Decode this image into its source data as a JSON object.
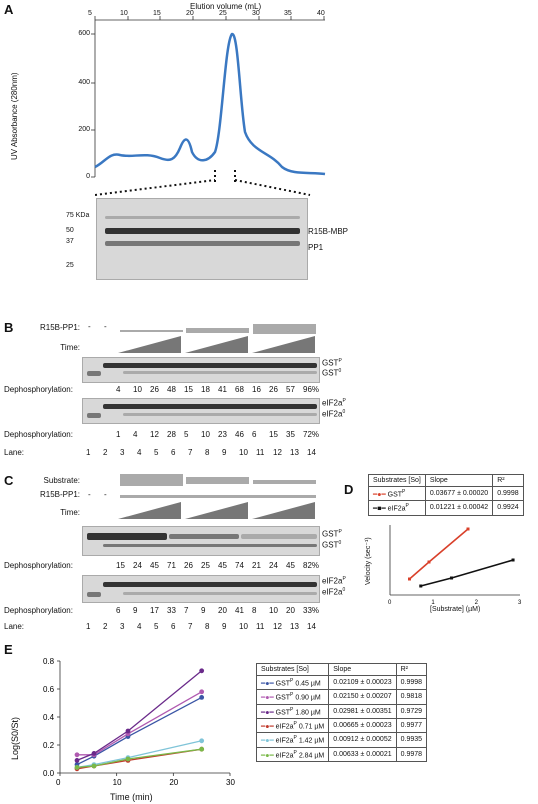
{
  "panels": {
    "a": "A",
    "b": "B",
    "c": "C",
    "d": "D",
    "e": "E"
  },
  "panelA": {
    "top_axis_label": "Elution volume (mL)",
    "top_ticks": [
      "5",
      "10",
      "15",
      "20",
      "25",
      "30",
      "35",
      "40"
    ],
    "ylabel": "UV Absorbance (280nm)",
    "yticks": [
      "600",
      "400",
      "200",
      "0"
    ],
    "gel_markers": [
      "75 KDa",
      "50",
      "37",
      "25"
    ],
    "gel_labels": [
      "R15B-MBP",
      "PP1"
    ]
  },
  "panelB": {
    "r15b_label": "R15B-PP1:",
    "dash1": "-",
    "dash2": "-",
    "time_label": "Time:",
    "gst_p": "GST",
    "gst_0": "GST",
    "eif_p": "eIF2a",
    "eif_0": "eIF2a",
    "deph_label": "Dephosphorylation:",
    "deph_gst": [
      "4",
      "10",
      "26",
      "48",
      "15",
      "18",
      "41",
      "68",
      "16",
      "26",
      "57",
      "96%"
    ],
    "deph_eif": [
      "1",
      "4",
      "12",
      "28",
      "5",
      "10",
      "23",
      "46",
      "6",
      "15",
      "35",
      "72%"
    ],
    "lane_label": "Lane:",
    "lanes": [
      "1",
      "2",
      "3",
      "4",
      "5",
      "6",
      "7",
      "8",
      "9",
      "10",
      "11",
      "12",
      "13",
      "14"
    ]
  },
  "panelC": {
    "substrate_label": "Substrate:",
    "r15b_label": "R15B-PP1:",
    "dash1": "-",
    "dash2": "-",
    "time_label": "Time:",
    "gst_p": "GST",
    "gst_0": "GST",
    "eif_p": "eIF2a",
    "eif_0": "eIF2a",
    "deph_label": "Dephosphorylation:",
    "deph_gst": [
      "15",
      "24",
      "45",
      "71",
      "26",
      "25",
      "45",
      "74",
      "21",
      "24",
      "45",
      "82%"
    ],
    "deph_eif": [
      "6",
      "9",
      "17",
      "33",
      "7",
      "9",
      "20",
      "41",
      "8",
      "10",
      "20",
      "33%"
    ],
    "lane_label": "Lane:",
    "lanes": [
      "1",
      "2",
      "3",
      "4",
      "5",
      "6",
      "7",
      "8",
      "9",
      "10",
      "11",
      "12",
      "13",
      "14"
    ]
  },
  "panelD": {
    "table_headers": [
      "Substrates [So]",
      "Slope",
      "R²"
    ],
    "rows": [
      {
        "name": "GST",
        "slope": "0.03677 ± 0.00020",
        "r2": "0.9998",
        "color": "#d9402a"
      },
      {
        "name": "eIF2a",
        "slope": "0.01221 ± 0.00042",
        "r2": "0.9924",
        "color": "#111111"
      }
    ],
    "ylabel": "Velocity (sec⁻¹)",
    "xlabel": "[Substrate] (µM)",
    "xticks": [
      "0",
      "1",
      "2",
      "3"
    ]
  },
  "panelE": {
    "table_headers": [
      "Substrates [So]",
      "Slope",
      "R²"
    ],
    "rows": [
      {
        "name": "GST",
        "conc": "0.45 µM",
        "slope": "0.02109 ± 0.00023",
        "r2": "0.9998",
        "color": "#3a55a5"
      },
      {
        "name": "GST",
        "conc": "0.90 µM",
        "slope": "0.02150 ± 0.00207",
        "r2": "0.9818",
        "color": "#b05ab0"
      },
      {
        "name": "GST",
        "conc": "1.80 µM",
        "slope": "0.02981 ± 0.00351",
        "r2": "0.9729",
        "color": "#6a2a8a"
      },
      {
        "name": "eIF2a",
        "conc": "0.71 µM",
        "slope": "0.00665 ± 0.00023",
        "r2": "0.9977",
        "color": "#c0392b"
      },
      {
        "name": "eIF2a",
        "conc": "1.42 µM",
        "slope": "0.00912 ± 0.00052",
        "r2": "0.9935",
        "color": "#7fc4d8"
      },
      {
        "name": "eIF2a",
        "conc": "2.84 µM",
        "slope": "0.00633 ± 0.00021",
        "r2": "0.9978",
        "color": "#7ab848"
      }
    ],
    "sup_p": "P",
    "ylabel": "Log(S0/St)",
    "xlabel": "Time (min)",
    "yticks": [
      "0.8",
      "0.6",
      "0.4",
      "0.2",
      "0.0"
    ],
    "xticks": [
      "0",
      "10",
      "20",
      "30"
    ]
  }
}
